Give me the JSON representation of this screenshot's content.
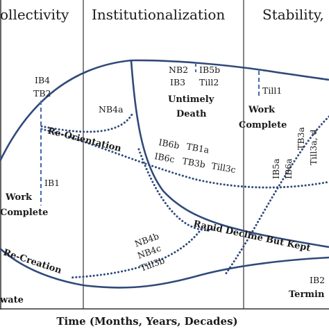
{
  "headers": {
    "collectivity": "ollectivity",
    "institutionalization": "Institutionalization",
    "stability": "Stability, I"
  },
  "x_axis": {
    "label": "Time (Months, Years, Decades)"
  },
  "curve_labels": {
    "re_orientation": "Re-Orientation",
    "rapid_decline": "Rapid Decline But Kept",
    "re_creation": "Re-Creation"
  },
  "events": {
    "work_complete_left_1": "Work",
    "work_complete_left_2": "Complete",
    "untimely_death_1": "Untimely",
    "untimely_death_2": "Death",
    "work_complete_right_1": "Work",
    "work_complete_right_2": "Complete",
    "termin": "Termin",
    "private": "wate"
  },
  "codes": {
    "ib4": "IB4",
    "tb2": "TB2",
    "ib1": "IB1",
    "nb4a": "NB4a",
    "nb2": "NB2",
    "ib3": "IB3",
    "ib5b": "IB5b",
    "till2": "Till2",
    "till1": "Till1",
    "ib6b": "IB6b",
    "tb1a": "TB1a",
    "ib6c": "IB6c",
    "tb3b": "TB3b",
    "till3c": "Till3c",
    "ib5a": "IB5a",
    "ib6a": "IB6a",
    "tb3a": "TB3a",
    "till3ad": "Till3a, d",
    "nb4b": "NB4b",
    "nb4c": "NB4c",
    "till3b": "Till3b",
    "ib2": "IB2"
  },
  "colors": {
    "curve": "#2f4a7a",
    "dashed_marker": "#4a6fb0",
    "divider": "#333333",
    "text": "#1a1a1a"
  }
}
